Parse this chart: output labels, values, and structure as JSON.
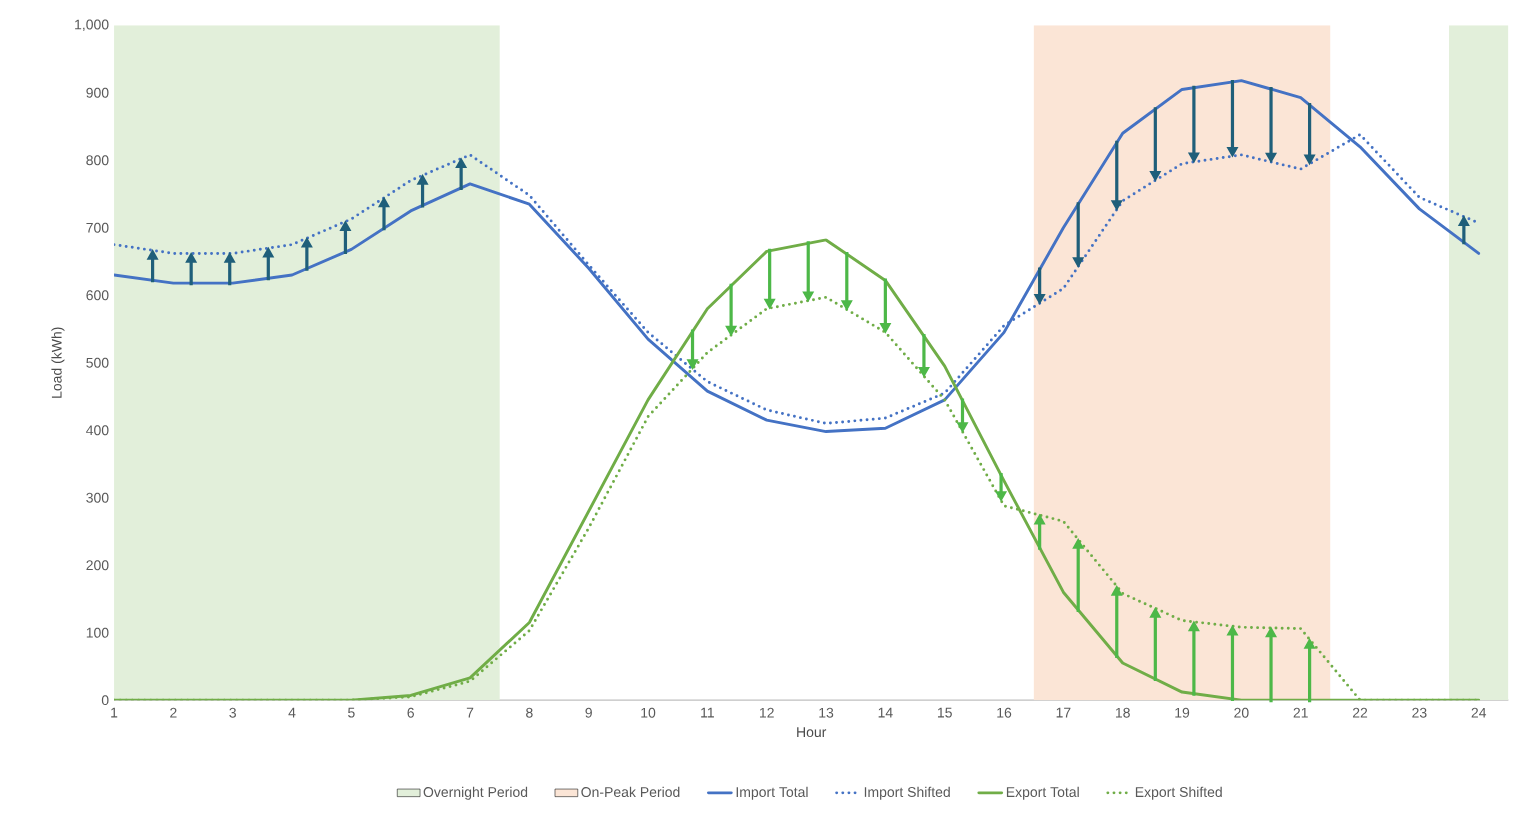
{
  "chart_data": {
    "type": "line",
    "xlabel": "Hour",
    "ylabel": "Load (kWh)",
    "x": [
      1,
      2,
      3,
      4,
      5,
      6,
      7,
      8,
      9,
      10,
      11,
      12,
      13,
      14,
      15,
      16,
      17,
      18,
      19,
      20,
      21,
      22,
      23,
      24
    ],
    "xlim": [
      1,
      24.5
    ],
    "xticks": [
      1,
      2,
      3,
      4,
      5,
      6,
      7,
      8,
      9,
      10,
      11,
      12,
      13,
      14,
      15,
      16,
      17,
      18,
      19,
      20,
      21,
      22,
      23,
      24
    ],
    "ylim": [
      0,
      1000
    ],
    "yticks": [
      0,
      100,
      200,
      300,
      400,
      500,
      600,
      700,
      800,
      900,
      {
        "value": 1000,
        "label": "1,000"
      }
    ],
    "grid": false,
    "legend": "bottom",
    "marker": "none",
    "bands": [
      {
        "axis": "x",
        "from": 1,
        "to": 7.5,
        "label": "Overnight Period",
        "color": "#e2efda"
      },
      {
        "axis": "x",
        "from": 16.5,
        "to": 21.5,
        "label": "On-Peak Period",
        "color": "#fbe5d6"
      },
      {
        "axis": "x",
        "from": 23.5,
        "to": 24.5,
        "color": "#e2efda"
      }
    ],
    "series": [
      {
        "name": "Import Total",
        "color": "#4472c4",
        "line_style": "solid",
        "values": [
          630,
          618,
          618,
          630,
          668,
          725,
          765,
          735,
          640,
          535,
          458,
          415,
          398,
          403,
          445,
          545,
          700,
          840,
          905,
          918,
          893,
          820,
          728,
          662
        ]
      },
      {
        "name": "Import Shifted",
        "color": "#4472c4",
        "line_style": "dotted",
        "values": [
          675,
          662,
          662,
          675,
          713,
          770,
          808,
          748,
          645,
          545,
          472,
          430,
          410,
          418,
          455,
          555,
          610,
          740,
          795,
          808,
          787,
          838,
          745,
          707
        ]
      },
      {
        "name": "Export Total",
        "color": "#70ad47",
        "line_style": "solid",
        "values": [
          0,
          0,
          0,
          0,
          0,
          7,
          33,
          115,
          280,
          445,
          580,
          665,
          682,
          622,
          495,
          325,
          160,
          55,
          12,
          0,
          0,
          0,
          0,
          0
        ]
      },
      {
        "name": "Export Shifted",
        "color": "#70ad47",
        "line_style": "dotted",
        "values": [
          0,
          0,
          0,
          0,
          0,
          5,
          28,
          103,
          255,
          420,
          515,
          580,
          597,
          545,
          445,
          288,
          265,
          158,
          118,
          108,
          106,
          0,
          0,
          0
        ]
      }
    ]
  }
}
